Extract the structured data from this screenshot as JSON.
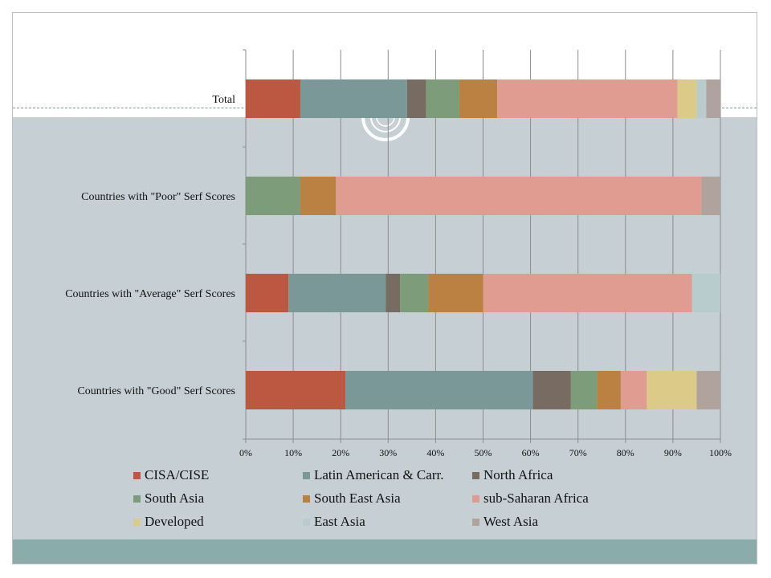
{
  "colors": {
    "background_band": "#c6d0d4",
    "footer_band": "#8aacab",
    "gridline": "#8c8c8c"
  },
  "chart_data": {
    "type": "bar",
    "orientation": "horizontal",
    "stacked": "percent",
    "categories": [
      "Total",
      "Countries with \"Poor\" Serf Scores",
      "Countries with \"Average\" Serf Scores",
      "Countries with \"Good\" Serf Scores"
    ],
    "series": [
      {
        "name": "CISA/CISE",
        "color": "#bc5742",
        "values": [
          11.5,
          0,
          9,
          21
        ]
      },
      {
        "name": "Latin American & Carr.",
        "color": "#7a9898",
        "values": [
          22.5,
          0,
          20.5,
          39.5
        ]
      },
      {
        "name": "North Africa",
        "color": "#786b62",
        "values": [
          4,
          0,
          3,
          8
        ]
      },
      {
        "name": "South Asia",
        "color": "#7d9c7a",
        "values": [
          7,
          11.5,
          6,
          5.5
        ]
      },
      {
        "name": "South East Asia",
        "color": "#bb8142",
        "values": [
          8,
          7.5,
          11.5,
          5
        ]
      },
      {
        "name": "sub-Saharan Africa",
        "color": "#e09c91",
        "values": [
          38,
          77,
          44,
          5.5
        ]
      },
      {
        "name": "Developed",
        "color": "#dccb88",
        "values": [
          4,
          0,
          0,
          10.5
        ]
      },
      {
        "name": "East Asia",
        "color": "#b8cbcd",
        "values": [
          2,
          0,
          6,
          0
        ]
      },
      {
        "name": "West Asia",
        "color": "#b0a39d",
        "values": [
          3,
          4,
          0,
          5
        ]
      }
    ],
    "x_ticks": [
      "0%",
      "10%",
      "20%",
      "30%",
      "40%",
      "50%",
      "60%",
      "70%",
      "80%",
      "90%",
      "100%"
    ],
    "xlim": [
      0,
      100
    ],
    "grid": "vertical",
    "legend_position": "bottom"
  }
}
